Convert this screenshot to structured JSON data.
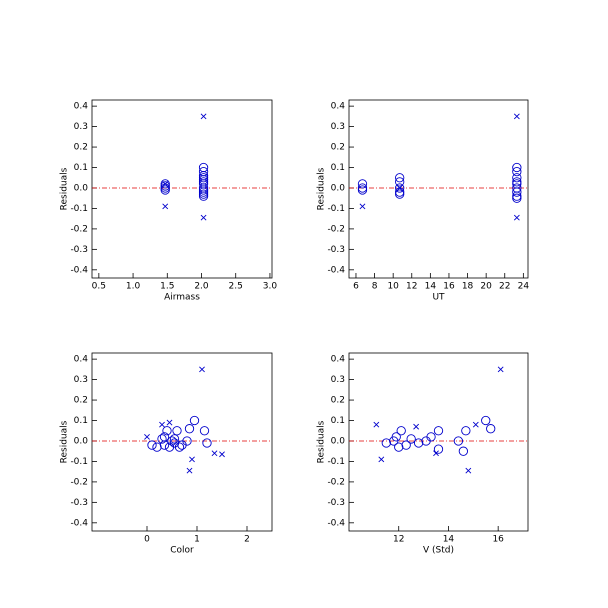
{
  "chart_data": [
    {
      "type": "scatter",
      "xlabel": "Airmass",
      "ylabel": "Residuals",
      "xlim": [
        0.4,
        3.03
      ],
      "ylim": [
        -0.44,
        0.43
      ],
      "xticks": [
        0.5,
        {
          "value": 1,
          "label": "1.0"
        },
        1.5,
        {
          "value": 2,
          "label": "2.0"
        },
        2.5,
        {
          "value": 3,
          "label": "3.0"
        }
      ],
      "yticks": [
        -0.4,
        -0.3,
        -0.2,
        -0.1,
        {
          "value": 0,
          "label": "0.0"
        },
        0.1,
        0.2,
        0.3,
        0.4
      ],
      "hline": 0,
      "series": [
        {
          "marker": "o",
          "color": "#0000cc",
          "x": [
            1.47,
            1.47,
            1.47,
            1.47,
            2.03,
            2.03,
            2.03,
            2.03,
            2.03,
            2.03,
            2.03,
            2.03,
            2.03,
            2.03,
            2.03,
            2.03
          ],
          "values": [
            0.02,
            0.0,
            -0.01,
            0.01,
            0.1,
            0.08,
            0.06,
            0.05,
            0.03,
            0.02,
            0.0,
            -0.01,
            -0.02,
            -0.03,
            -0.04,
            0.04
          ]
        },
        {
          "marker": "x",
          "color": "#0000cc",
          "x": [
            1.47,
            2.03,
            2.03,
            1.47
          ],
          "values": [
            -0.09,
            0.35,
            -0.145,
            0.02
          ]
        }
      ]
    },
    {
      "type": "scatter",
      "xlabel": "UT",
      "ylabel": "Residuals",
      "xlim": [
        5.25,
        24.5
      ],
      "ylim": [
        -0.44,
        0.43
      ],
      "xticks": [
        6,
        8,
        10,
        12,
        14,
        16,
        18,
        20,
        22,
        24
      ],
      "yticks": [
        -0.4,
        -0.3,
        -0.2,
        -0.1,
        {
          "value": 0,
          "label": "0.0"
        },
        0.1,
        0.2,
        0.3,
        0.4
      ],
      "hline": 0,
      "series": [
        {
          "marker": "o",
          "color": "#0000cc",
          "x": [
            6.7,
            6.7,
            6.7,
            10.7,
            10.7,
            10.7,
            10.7,
            10.7,
            23.3,
            23.3,
            23.3,
            23.3,
            23.3,
            23.3,
            23.3,
            23.3,
            23.3
          ],
          "values": [
            0.02,
            0.0,
            -0.01,
            0.05,
            0.03,
            0.0,
            -0.02,
            -0.03,
            0.1,
            0.08,
            0.05,
            0.03,
            0.0,
            -0.02,
            -0.04,
            -0.05,
            0.02
          ]
        },
        {
          "marker": "x",
          "color": "#0000cc",
          "x": [
            6.7,
            23.3,
            23.3,
            10.7
          ],
          "values": [
            -0.09,
            0.35,
            -0.145,
            0.0
          ]
        }
      ]
    },
    {
      "type": "scatter",
      "xlabel": "Color",
      "ylabel": "Residuals",
      "xlim": [
        -1.1,
        2.5
      ],
      "ylim": [
        -0.44,
        0.43
      ],
      "xticks": [
        0,
        1,
        2
      ],
      "yticks": [
        -0.4,
        -0.3,
        -0.2,
        -0.1,
        {
          "value": 0,
          "label": "0.0"
        },
        0.1,
        0.2,
        0.3,
        0.4
      ],
      "hline": 0,
      "series": [
        {
          "marker": "o",
          "color": "#0000cc",
          "x": [
            0.1,
            0.2,
            0.3,
            0.35,
            0.4,
            0.45,
            0.5,
            0.55,
            0.6,
            0.65,
            0.7,
            0.8,
            0.85,
            0.95,
            1.15,
            1.2,
            0.35,
            0.55
          ],
          "values": [
            -0.02,
            -0.03,
            0.01,
            -0.02,
            0.05,
            -0.03,
            0.0,
            -0.01,
            0.05,
            -0.03,
            -0.02,
            0.0,
            0.06,
            0.1,
            0.05,
            -0.01,
            0.02,
            0.01
          ]
        },
        {
          "marker": "x",
          "color": "#0000cc",
          "x": [
            0.0,
            0.3,
            0.45,
            0.85,
            0.9,
            1.1,
            1.35,
            1.5
          ],
          "values": [
            0.02,
            0.08,
            0.09,
            -0.145,
            -0.09,
            0.35,
            -0.06,
            -0.065
          ]
        }
      ]
    },
    {
      "type": "scatter",
      "xlabel": "V (Std)",
      "ylabel": "Residuals",
      "xlim": [
        10,
        17.2
      ],
      "ylim": [
        -0.44,
        0.43
      ],
      "xticks": [
        12,
        14,
        16
      ],
      "yticks": [
        -0.4,
        -0.3,
        -0.2,
        -0.1,
        {
          "value": 0,
          "label": "0.0"
        },
        0.1,
        0.2,
        0.3,
        0.4
      ],
      "hline": 0,
      "series": [
        {
          "marker": "o",
          "color": "#0000cc",
          "x": [
            11.5,
            11.8,
            11.9,
            12.0,
            12.1,
            12.3,
            12.5,
            12.8,
            13.1,
            13.3,
            13.6,
            13.6,
            14.4,
            14.6,
            14.7,
            15.5,
            15.7
          ],
          "values": [
            -0.01,
            0.0,
            0.02,
            -0.03,
            0.05,
            -0.02,
            0.01,
            -0.01,
            0.0,
            0.02,
            0.05,
            -0.04,
            0.0,
            -0.05,
            0.05,
            0.1,
            0.06
          ]
        },
        {
          "marker": "x",
          "color": "#0000cc",
          "x": [
            11.1,
            11.3,
            12.7,
            13.5,
            14.8,
            15.1,
            16.1
          ],
          "values": [
            0.08,
            -0.09,
            0.07,
            -0.06,
            -0.145,
            0.08,
            0.35
          ]
        }
      ]
    }
  ]
}
